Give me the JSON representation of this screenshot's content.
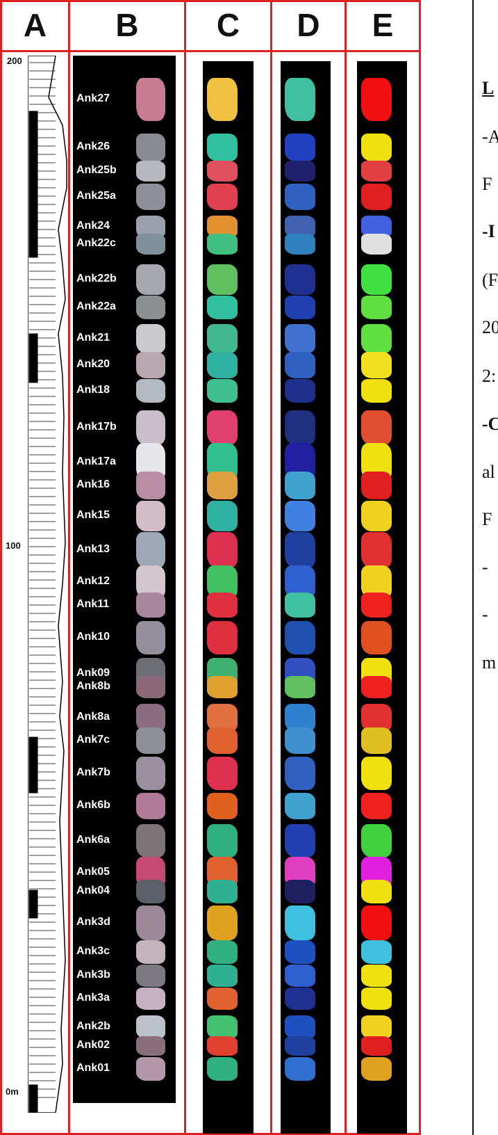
{
  "columns": [
    "A",
    "B",
    "C",
    "D",
    "E"
  ],
  "axis": {
    "top": "200",
    "mid": "100",
    "bottom": "0m"
  },
  "samples": [
    "Ank27",
    "Ank26",
    "Ank25b",
    "Ank25a",
    "Ank24",
    "Ank22c",
    "Ank22b",
    "Ank22a",
    "Ank21",
    "Ank20",
    "Ank18",
    "Ank17b",
    "Ank17a",
    "Ank16",
    "Ank15",
    "Ank13",
    "Ank12",
    "Ank11",
    "Ank10",
    "Ank09",
    "Ank8b",
    "Ank8a",
    "Ank7c",
    "Ank7b",
    "Ank6b",
    "Ank6a",
    "Ank05",
    "Ank04",
    "Ank3d",
    "Ank3c",
    "Ank3b",
    "Ank3a",
    "Ank2b",
    "Ank02",
    "Ank01"
  ],
  "legend": {
    "l1": "L",
    "l2": "-A",
    "l3": "F",
    "l4": "-I",
    "l5": "(F",
    "l6": "20",
    "l7": "2:",
    "l8": "-C",
    "l9": "al",
    "l10": "F",
    "l11": "-",
    "l12": "-",
    "l13": "m"
  }
}
